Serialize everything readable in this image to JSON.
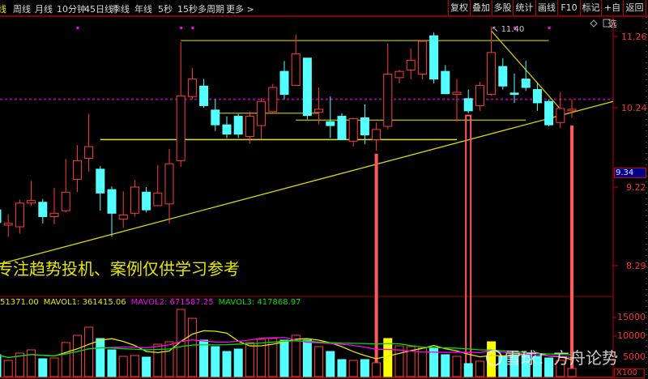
{
  "toolbar": {
    "active_tab": "线",
    "periods": [
      "周线",
      "月线",
      "10分钟",
      "45日线",
      "季线",
      "年线",
      "5秒",
      "15秒",
      "多周期"
    ],
    "more": "更多 >",
    "actions": [
      "复权",
      "叠加",
      "多股",
      "统计",
      "画线",
      "F10",
      "标记",
      "+自选",
      "返回"
    ]
  },
  "colors": {
    "up": "#ff3c3c",
    "down": "#54ffff",
    "volume_highlight": "#ffff00",
    "mavol1": "#e6e600",
    "mavol2": "#ff00ff",
    "mavol3": "#00e000",
    "signal": "#ff5a5a",
    "axis": "#c00000"
  },
  "chart_data": {
    "type": "candlestick",
    "price_axis": {
      "ticks": [
        "11.26",
        "10.24",
        "9.22",
        "8.29"
      ]
    },
    "current_price_label": "9.34",
    "high_annotation": "11.40",
    "candles": [
      [
        8.95,
        8.98,
        8.77,
        8.8
      ],
      [
        8.77,
        8.9,
        8.63,
        8.79
      ],
      [
        8.75,
        9.07,
        8.67,
        9.03
      ],
      [
        9.03,
        9.3,
        9.0,
        9.06
      ],
      [
        9.04,
        9.08,
        8.79,
        8.87
      ],
      [
        8.87,
        9.21,
        8.78,
        8.91
      ],
      [
        8.94,
        9.58,
        8.92,
        9.16
      ],
      [
        9.32,
        9.76,
        9.16,
        9.56
      ],
      [
        9.59,
        10.16,
        9.42,
        9.74
      ],
      [
        9.45,
        9.49,
        8.94,
        9.15
      ],
      [
        9.19,
        9.23,
        8.63,
        8.91
      ],
      [
        8.84,
        9.17,
        8.74,
        8.89
      ],
      [
        8.91,
        9.31,
        8.87,
        9.22
      ],
      [
        9.16,
        9.22,
        8.92,
        8.95
      ],
      [
        9.0,
        9.5,
        9.0,
        9.15
      ],
      [
        9.02,
        9.71,
        8.79,
        9.52
      ],
      [
        9.56,
        11.18,
        9.48,
        10.41
      ],
      [
        10.4,
        10.81,
        10.36,
        10.65
      ],
      [
        10.55,
        10.65,
        10.24,
        10.27
      ],
      [
        10.21,
        10.36,
        9.94,
        10.02
      ],
      [
        10.02,
        10.13,
        9.85,
        9.9
      ],
      [
        10.13,
        10.16,
        9.85,
        9.9
      ],
      [
        9.87,
        10.19,
        9.78,
        10.13
      ],
      [
        10.01,
        10.38,
        9.84,
        10.33
      ],
      [
        10.19,
        10.58,
        10.17,
        10.53
      ],
      [
        10.76,
        10.91,
        10.36,
        10.43
      ],
      [
        10.56,
        11.29,
        10.56,
        11.01
      ],
      [
        10.95,
        10.95,
        10.09,
        10.14
      ],
      [
        10.18,
        10.53,
        10.03,
        10.22
      ],
      [
        10.06,
        10.4,
        9.85,
        10.01
      ],
      [
        10.13,
        10.17,
        9.83,
        9.83
      ],
      [
        9.81,
        10.11,
        9.74,
        10.1
      ],
      [
        10.11,
        10.29,
        9.77,
        9.89
      ],
      [
        9.83,
        10.05,
        9.69,
        9.96
      ],
      [
        10.0,
        11.16,
        9.96,
        10.72
      ],
      [
        10.67,
        10.78,
        10.59,
        10.76
      ],
      [
        10.78,
        11.09,
        10.65,
        10.92
      ],
      [
        10.72,
        11.2,
        10.65,
        11.19
      ],
      [
        11.27,
        11.32,
        10.59,
        10.65
      ],
      [
        10.76,
        10.85,
        10.44,
        10.44
      ],
      [
        10.43,
        10.65,
        10.06,
        10.46
      ],
      [
        10.37,
        10.5,
        10.17,
        10.2
      ],
      [
        10.27,
        10.61,
        10.2,
        10.56
      ],
      [
        10.43,
        11.4,
        10.41,
        11.03
      ],
      [
        10.83,
        10.95,
        10.5,
        10.55
      ],
      [
        10.45,
        10.73,
        10.31,
        10.43
      ],
      [
        10.65,
        10.91,
        10.48,
        10.53
      ],
      [
        10.5,
        10.6,
        10.2,
        10.31
      ],
      [
        10.33,
        10.36,
        10.0,
        10.02
      ],
      [
        10.05,
        10.46,
        9.98,
        10.23
      ],
      [
        10.2,
        10.36,
        10.11,
        10.22
      ]
    ],
    "drawings": {
      "horizontal": [
        {
          "price": 11.2,
          "from": 16,
          "to": 48,
          "color": "#9a9a00"
        },
        {
          "price": 10.17,
          "from": 19,
          "to": 28,
          "color": "#9a9a00"
        },
        {
          "price": 10.08,
          "from": 26,
          "to": 46,
          "color": "#a8a800"
        },
        {
          "price": 9.83,
          "from": 9,
          "to": 40,
          "color": "#e6e600"
        }
      ],
      "trend": [
        {
          "from": [
            0.3,
            8.31
          ],
          "to": [
            53.6,
            10.33
          ],
          "color": "#d8d800"
        },
        {
          "from": [
            43,
            11.34
          ],
          "to": [
            48.9,
            10.24
          ],
          "color": "#c8c800"
        }
      ],
      "dotted_level": 10.36,
      "top_markers": [
        7,
        16,
        17,
        45,
        48
      ]
    },
    "signals": [
      {
        "index": 33,
        "top": 9.65,
        "double": false
      },
      {
        "index": 41,
        "top": 10.14,
        "double": true
      },
      {
        "index": 50,
        "top": 10.01,
        "double": false
      }
    ],
    "volume": {
      "values": [
        5400,
        4000,
        5800,
        6600,
        4400,
        4600,
        8400,
        10200,
        12200,
        9400,
        6600,
        5000,
        5200,
        4800,
        8000,
        8600,
        16600,
        14400,
        9000,
        7400,
        6200,
        6800,
        8400,
        9200,
        9400,
        9000,
        10200,
        9000,
        7400,
        6200,
        4200,
        4000,
        4200,
        3400,
        9400,
        7600,
        7400,
        7000,
        7000,
        5400,
        5000,
        3200,
        3800,
        8600,
        5000,
        5400,
        5400,
        5000,
        4600,
        4000,
        2000
      ],
      "highlight_indices": [
        34,
        43
      ],
      "ticks": [
        "15000",
        "10000",
        "5000"
      ],
      "unit": "X100"
    },
    "volume_legend": {
      "vol": "51371.00",
      "mavol1": "MAVOL1: 361415.06",
      "mavol2": "MAVOL2: 671587.25",
      "mavol3": "MAVOL3: 417868.97"
    }
  },
  "overlay_text": "专注趋势投机、案例仅供学习参考",
  "watermark": "雪球：方舟论势"
}
